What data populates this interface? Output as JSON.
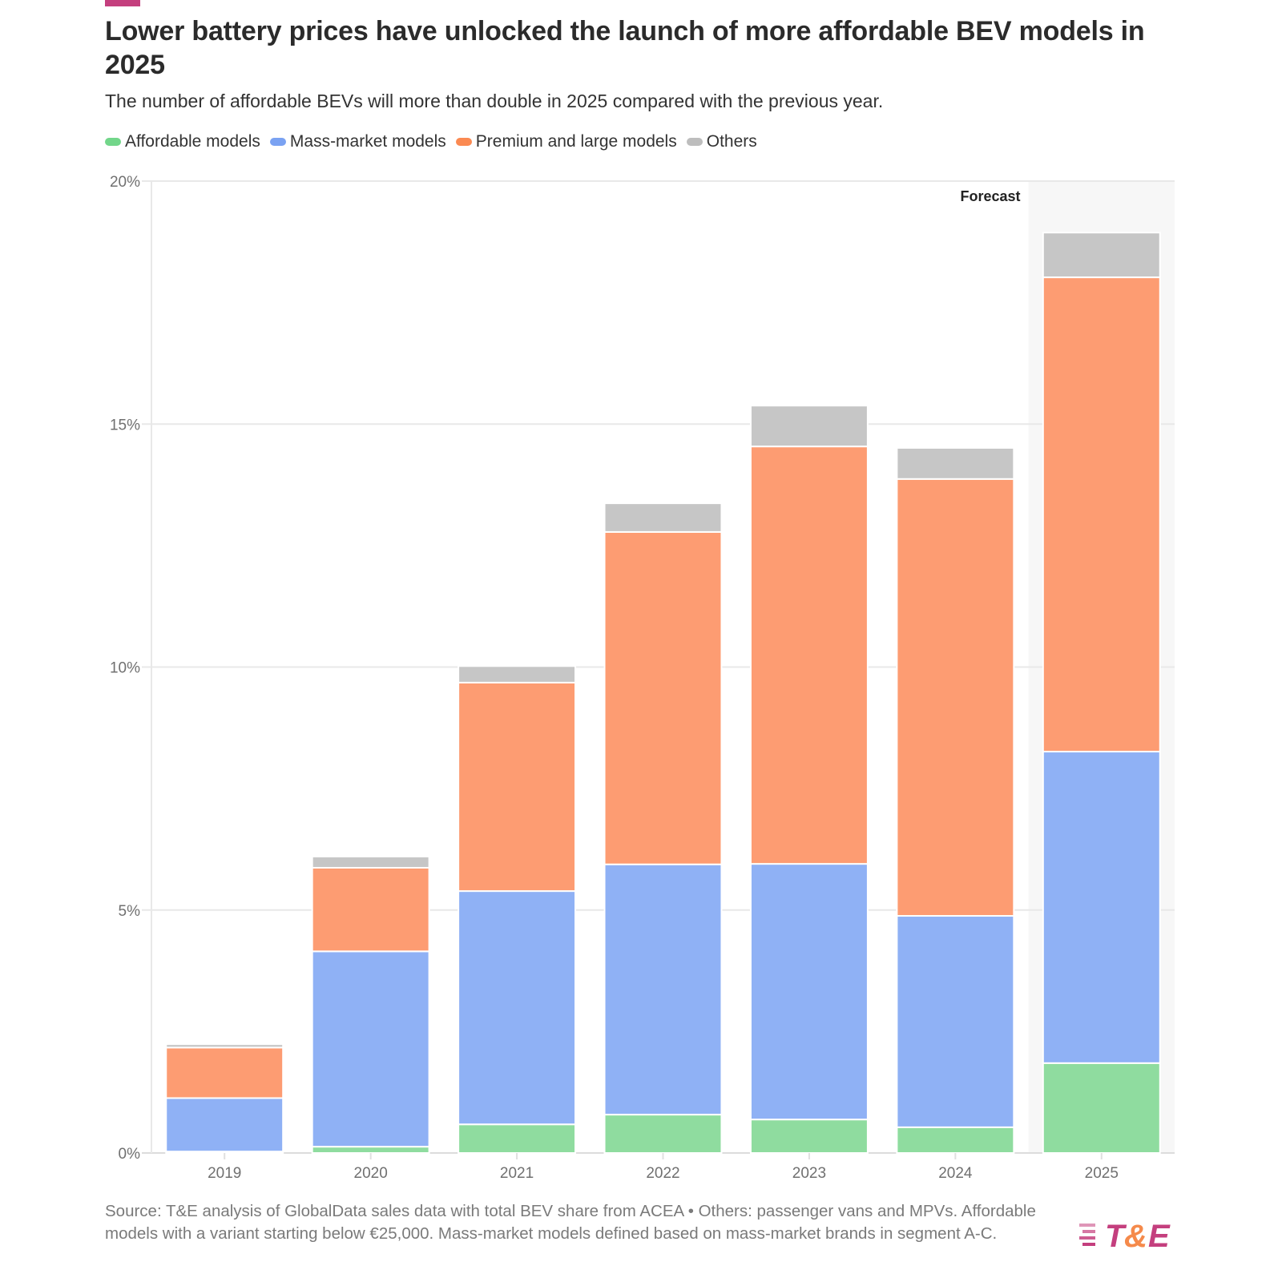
{
  "header": {
    "title": "Lower battery prices have unlocked the launch of more affordable BEV models in 2025",
    "subtitle": "The number of affordable BEVs will more than double in 2025 compared with the previous year.",
    "accent_color": "#c43f7e"
  },
  "footer": {
    "source_text": "Source: T&E analysis of GlobalData sales data with total BEV share from ACEA • Others: passenger vans and MPVs. Affordable models with a variant starting below €25,000. Mass-market models defined based on mass-market brands in segment A-C.",
    "logo_text_t": "T",
    "logo_text_amp": "&",
    "logo_text_e": "E"
  },
  "chart_data": {
    "type": "bar",
    "stacked": true,
    "title": "Lower battery prices have unlocked the launch of more affordable BEV models in 2025",
    "subtitle": "The number of affordable BEVs will more than double in 2025 compared with the previous year.",
    "xlabel": "",
    "ylabel": "",
    "categories": [
      "2019",
      "2020",
      "2021",
      "2022",
      "2023",
      "2024",
      "2025"
    ],
    "series": [
      {
        "name": "Affordable models",
        "color": "#8fdc9f",
        "legend_color": "#72d68a",
        "values": [
          0.03,
          0.13,
          0.59,
          0.79,
          0.69,
          0.53,
          1.85
        ]
      },
      {
        "name": "Mass-market models",
        "color": "#8fb1f5",
        "legend_color": "#7aa2f2",
        "values": [
          1.1,
          4.02,
          4.8,
          5.15,
          5.26,
          4.35,
          6.41
        ]
      },
      {
        "name": "Premium and large models",
        "color": "#fd9c72",
        "legend_color": "#fb8a52",
        "values": [
          1.04,
          1.72,
          4.29,
          6.84,
          8.59,
          8.99,
          9.76
        ]
      },
      {
        "name": "Others",
        "color": "#c6c6c6",
        "legend_color": "#bdbdbd",
        "values": [
          0.07,
          0.23,
          0.34,
          0.59,
          0.84,
          0.64,
          0.92
        ]
      }
    ],
    "ylim": [
      0,
      20
    ],
    "yticks": [
      0,
      5,
      10,
      15,
      20
    ],
    "ytick_labels": [
      "0%",
      "5%",
      "10%",
      "15%",
      "20%"
    ],
    "grid": true,
    "legend_position": "top-left",
    "annotations": [
      {
        "text": "Forecast",
        "category": "2025",
        "shaded": true
      }
    ]
  }
}
